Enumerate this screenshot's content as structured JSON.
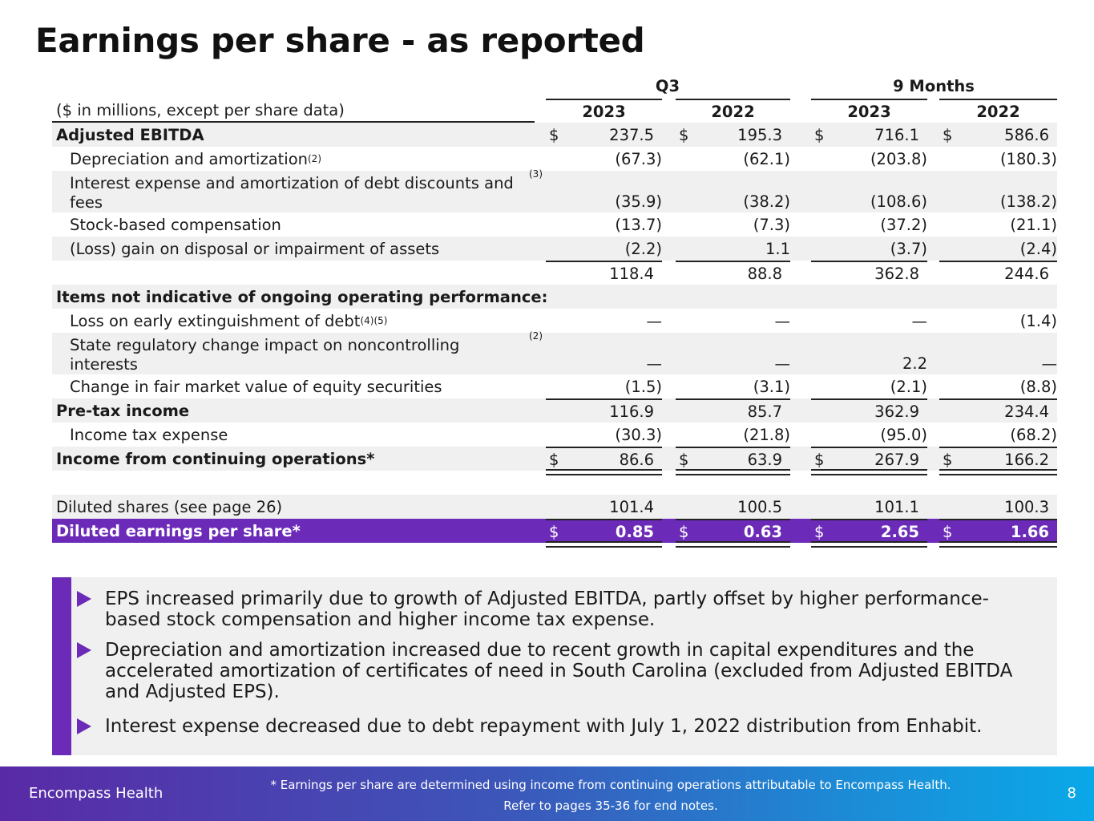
{
  "title": "Earnings per share - as reported",
  "table": {
    "group_headers": [
      "Q3",
      "9 Months"
    ],
    "units_label": "($ in millions, except per share data)",
    "years": [
      "2023",
      "2022",
      "2023",
      "2022"
    ],
    "rows": [
      {
        "label": "Adjusted EBITDA",
        "sup": "",
        "style": "bold",
        "shade": true,
        "values": [
          "237.5",
          "195.3",
          "716.1",
          "586.6"
        ],
        "dollar": true
      },
      {
        "label": "Depreciation and amortization",
        "sup": "(2)",
        "style": "indent",
        "shade": false,
        "values": [
          "(67.3)",
          "(62.1)",
          "(203.8)",
          "(180.3)"
        ]
      },
      {
        "label": "Interest expense and amortization of debt discounts and fees",
        "sup": "(3)",
        "style": "indent",
        "shade": true,
        "values": [
          "(35.9)",
          "(38.2)",
          "(108.6)",
          "(138.2)"
        ]
      },
      {
        "label": "Stock-based compensation",
        "sup": "",
        "style": "indent",
        "shade": false,
        "values": [
          "(13.7)",
          "(7.3)",
          "(37.2)",
          "(21.1)"
        ]
      },
      {
        "label": "(Loss) gain on disposal or impairment of assets",
        "sup": "",
        "style": "indent",
        "shade": true,
        "values": [
          "(2.2)",
          "1.1",
          "(3.7)",
          "(2.4)"
        ]
      },
      {
        "label": "",
        "sup": "",
        "style": "plain",
        "shade": false,
        "values": [
          "118.4",
          "88.8",
          "362.8",
          "244.6"
        ]
      },
      {
        "label": "Items not indicative of ongoing operating performance:",
        "sup": "",
        "style": "bold",
        "shade": true,
        "values": [
          "",
          "",
          "",
          ""
        ]
      },
      {
        "label": "Loss on early extinguishment of debt",
        "sup": "(4)(5)",
        "style": "indent",
        "shade": false,
        "values": [
          "—",
          "—",
          "—",
          "(1.4)"
        ]
      },
      {
        "label": "State regulatory change impact on noncontrolling interests",
        "sup": "(2)",
        "style": "indent",
        "shade": true,
        "values": [
          "—",
          "—",
          "2.2",
          "—"
        ]
      },
      {
        "label": "Change in fair market value of equity securities",
        "sup": "",
        "style": "indent",
        "shade": false,
        "values": [
          "(1.5)",
          "(3.1)",
          "(2.1)",
          "(8.8)"
        ]
      },
      {
        "label": "Pre-tax income",
        "sup": "",
        "style": "bold",
        "shade": true,
        "values": [
          "116.9",
          "85.7",
          "362.9",
          "234.4"
        ]
      },
      {
        "label": "Income tax expense",
        "sup": "",
        "style": "indent",
        "shade": false,
        "values": [
          "(30.3)",
          "(21.8)",
          "(95.0)",
          "(68.2)"
        ]
      },
      {
        "label": "Income from continuing operations*",
        "sup": "",
        "style": "bold",
        "shade": true,
        "values": [
          "86.6",
          "63.9",
          "267.9",
          "166.2"
        ],
        "dollar": true
      },
      {
        "label": "",
        "sup": "",
        "style": "plain",
        "shade": false,
        "values": [
          "",
          "",
          "",
          ""
        ]
      },
      {
        "label": "Diluted shares (see page 26)",
        "sup": "",
        "style": "plain",
        "shade": true,
        "values": [
          "101.4",
          "100.5",
          "101.1",
          "100.3"
        ]
      },
      {
        "label": "Diluted earnings per share*",
        "sup": "",
        "style": "bold",
        "shade": false,
        "values": [
          "0.85",
          "0.63",
          "2.65",
          "1.66"
        ],
        "dollar": true
      }
    ]
  },
  "bullets": [
    "EPS increased primarily due to growth of Adjusted EBITDA, partly offset by higher performance-based stock compensation and higher income tax expense.",
    "Depreciation and amortization increased due to recent growth in capital expenditures and the accelerated amortization of certificates of need in South Carolina (excluded from Adjusted EBITDA and Adjusted EPS).",
    "Interest expense decreased due to debt repayment with July 1, 2022 distribution from Enhabit."
  ],
  "footer": {
    "brand": "Encompass Health",
    "note_line1": "* Earnings per share are determined using income from continuing operations attributable to Encompass Health.",
    "note_line2": "Refer to pages 35-36 for end notes.",
    "page_number": "8"
  },
  "colors": {
    "accent_purple": "#6b2bb8",
    "row_shade": "#f0f0f0",
    "footer_gradient_start": "#5a2aa6",
    "footer_gradient_end": "#0aa8e8"
  },
  "currency_symbol": "$"
}
